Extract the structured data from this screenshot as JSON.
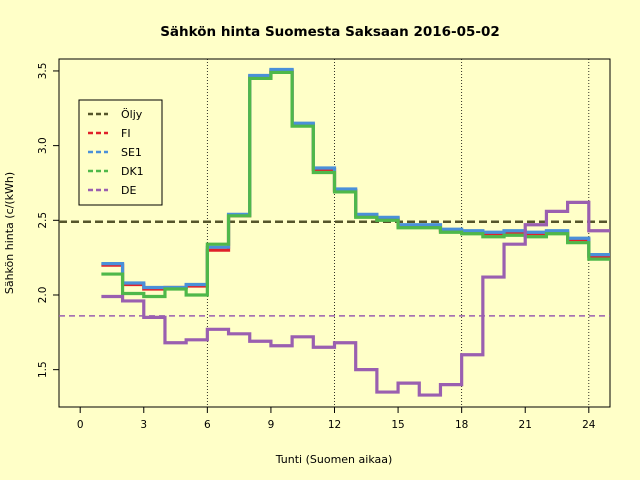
{
  "chart_data": {
    "type": "line",
    "title": "Sähkön hinta Suomesta Saksaan 2016-05-02",
    "xlabel": "Tunti (Suomen aikaa)",
    "ylabel": "Sähkön hinta (c/(kWh)",
    "xlim": [
      -1,
      25
    ],
    "ylim": [
      1.25,
      3.58
    ],
    "xticks": [
      0,
      3,
      6,
      9,
      12,
      15,
      18,
      21,
      24
    ],
    "yticks": [
      1.5,
      2.0,
      2.5,
      3.0,
      3.5
    ],
    "vlines": [
      6,
      12,
      18,
      24
    ],
    "legend_position": "top-left",
    "step_x": [
      1,
      2,
      3,
      4,
      5,
      6,
      7,
      8,
      9,
      10,
      11,
      12,
      13,
      14,
      15,
      16,
      17,
      18,
      19,
      20,
      21,
      22,
      23,
      24,
      25
    ],
    "series": [
      {
        "name": "Öljy",
        "kind": "hline",
        "value": 2.49,
        "color": "#55552a",
        "dash": true
      },
      {
        "name": "FI",
        "kind": "step",
        "color": "#e0202a",
        "values": [
          2.2,
          2.07,
          2.04,
          2.05,
          2.06,
          2.3,
          2.53,
          3.46,
          3.5,
          3.14,
          2.84,
          2.7,
          2.53,
          2.51,
          2.46,
          2.46,
          2.43,
          2.42,
          2.41,
          2.42,
          2.41,
          2.42,
          2.37,
          2.26
        ]
      },
      {
        "name": "SE1",
        "kind": "step",
        "color": "#4a90d9",
        "values": [
          2.21,
          2.08,
          2.05,
          2.05,
          2.07,
          2.32,
          2.54,
          3.47,
          3.51,
          3.15,
          2.85,
          2.71,
          2.54,
          2.52,
          2.47,
          2.47,
          2.44,
          2.43,
          2.42,
          2.43,
          2.42,
          2.43,
          2.38,
          2.27
        ]
      },
      {
        "name": "DK1",
        "kind": "step",
        "color": "#4fb84a",
        "values": [
          2.14,
          2.01,
          1.99,
          2.04,
          2.0,
          2.34,
          2.53,
          3.45,
          3.49,
          3.13,
          2.82,
          2.69,
          2.52,
          2.5,
          2.45,
          2.45,
          2.42,
          2.41,
          2.39,
          2.4,
          2.39,
          2.41,
          2.35,
          2.24
        ]
      },
      {
        "name": "DE",
        "kind": "step",
        "color": "#9a5fb0",
        "values": [
          1.99,
          1.96,
          1.85,
          1.68,
          1.7,
          1.77,
          1.74,
          1.69,
          1.66,
          1.72,
          1.65,
          1.68,
          1.5,
          1.35,
          1.41,
          1.33,
          1.4,
          1.6,
          2.12,
          2.34,
          2.47,
          2.56,
          2.62,
          2.43
        ]
      },
      {
        "name": "",
        "kind": "hline",
        "value": 1.86,
        "color": "#9a5fb0",
        "dash": true
      }
    ]
  }
}
